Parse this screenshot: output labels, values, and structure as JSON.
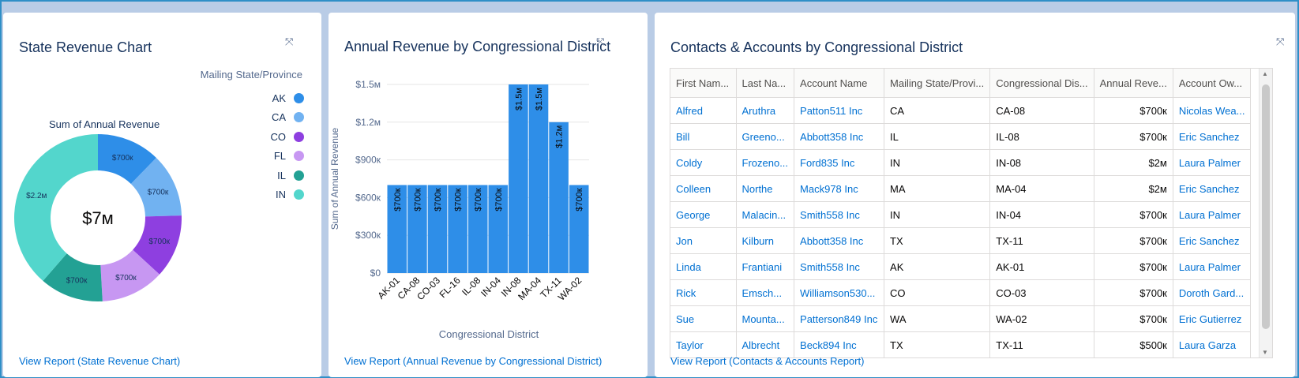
{
  "cards": {
    "state": {
      "title": "State Revenue Chart",
      "expand_icon": "⤧",
      "legend_title": "Mailing State/Province",
      "legend": [
        {
          "label": "AK",
          "color": "#2e8ee8"
        },
        {
          "label": "CA",
          "color": "#71b2f1"
        },
        {
          "label": "CO",
          "color": "#8e3fe0"
        },
        {
          "label": "FL",
          "color": "#c797f2"
        },
        {
          "label": "IL",
          "color": "#23a194"
        },
        {
          "label": "IN",
          "color": "#53d6cc"
        }
      ],
      "donut_title": "Sum of Annual Revenue",
      "center_label": "$7м",
      "view_report": "View Report (State Revenue Chart)"
    },
    "district": {
      "title": "Annual Revenue by Congressional District",
      "expand_icon": "⤧",
      "view_report": "View Report (Annual Revenue by Congressional District)"
    },
    "contacts": {
      "title": "Contacts & Accounts by Congressional District",
      "expand_icon": "⤧",
      "columns": [
        "First Nam...",
        "Last Na...",
        "Account Name",
        "Mailing State/Provi...",
        "Congressional Dis...",
        "Annual Reve...",
        "Account Ow..."
      ],
      "rows": [
        [
          "Alfred",
          "Aruthra",
          "Patton511 Inc",
          "CA",
          "CA-08",
          "$700к",
          "Nicolas Wea..."
        ],
        [
          "Bill",
          "Greeno...",
          "Abbott358 Inc",
          "IL",
          "IL-08",
          "$700к",
          "Eric Sanchez"
        ],
        [
          "Coldy",
          "Frozeno...",
          "Ford835 Inc",
          "IN",
          "IN-08",
          "$2м",
          "Laura Palmer"
        ],
        [
          "Colleen",
          "Northe",
          "Mack978 Inc",
          "MA",
          "MA-04",
          "$2м",
          "Eric Sanchez"
        ],
        [
          "George",
          "Malacin...",
          "Smith558 Inc",
          "IN",
          "IN-04",
          "$700к",
          "Laura Palmer"
        ],
        [
          "Jon",
          "Kilburn",
          "Abbott358 Inc",
          "TX",
          "TX-11",
          "$700к",
          "Eric Sanchez"
        ],
        [
          "Linda",
          "Frantiani",
          "Smith558 Inc",
          "AK",
          "AK-01",
          "$700к",
          "Laura Palmer"
        ],
        [
          "Rick",
          "Emsch...",
          "Williamson530...",
          "CO",
          "CO-03",
          "$700к",
          "Doroth Gard..."
        ],
        [
          "Sue",
          "Mounta...",
          "Patterson849 Inc",
          "WA",
          "WA-02",
          "$700к",
          "Eric Gutierrez"
        ],
        [
          "Taylor",
          "Albrecht",
          "Beck894 Inc",
          "TX",
          "TX-11",
          "$500к",
          "Laura Garza"
        ]
      ],
      "view_report": "View Report (Contacts & Accounts Report)"
    }
  },
  "chart_data": [
    {
      "type": "pie",
      "title": "Sum of Annual Revenue",
      "center_label": "$7м",
      "slices": [
        {
          "label": "AK",
          "value": 0.7,
          "display": "$700к",
          "color": "#2e8ee8"
        },
        {
          "label": "CA",
          "value": 0.7,
          "display": "$700к",
          "color": "#71b2f1"
        },
        {
          "label": "CO",
          "value": 0.7,
          "display": "$700к",
          "color": "#8e3fe0"
        },
        {
          "label": "FL",
          "value": 0.7,
          "display": "$700к",
          "color": "#c797f2"
        },
        {
          "label": "IL",
          "value": 0.7,
          "display": "$700к",
          "color": "#23a194"
        },
        {
          "label": "IN",
          "value": 2.2,
          "display": "$2.2м",
          "color": "#53d6cc"
        }
      ]
    },
    {
      "type": "bar",
      "title": "Annual Revenue by Congressional District",
      "xlabel": "Congressional District",
      "ylabel": "Sum of Annual Revenue",
      "ylim": [
        0,
        1500000
      ],
      "yticks": [
        {
          "value": 0,
          "label": "$0"
        },
        {
          "value": 300000,
          "label": "$300к"
        },
        {
          "value": 600000,
          "label": "$600к"
        },
        {
          "value": 900000,
          "label": "$900к"
        },
        {
          "value": 1200000,
          "label": "$1.2м"
        },
        {
          "value": 1500000,
          "label": "$1.5м"
        }
      ],
      "categories": [
        "AK-01",
        "CA-08",
        "CO-03",
        "FL-16",
        "IL-08",
        "IN-04",
        "IN-08",
        "MA-04",
        "TX-11",
        "WA-02"
      ],
      "values": [
        700000,
        700000,
        700000,
        700000,
        700000,
        700000,
        1500000,
        1500000,
        1200000,
        700000
      ],
      "value_labels": [
        "$700к",
        "$700к",
        "$700к",
        "$700к",
        "$700к",
        "$700к",
        "$1.5м",
        "$1.5м",
        "$1.2м",
        "$700к"
      ],
      "color": "#2e8ee8"
    }
  ]
}
